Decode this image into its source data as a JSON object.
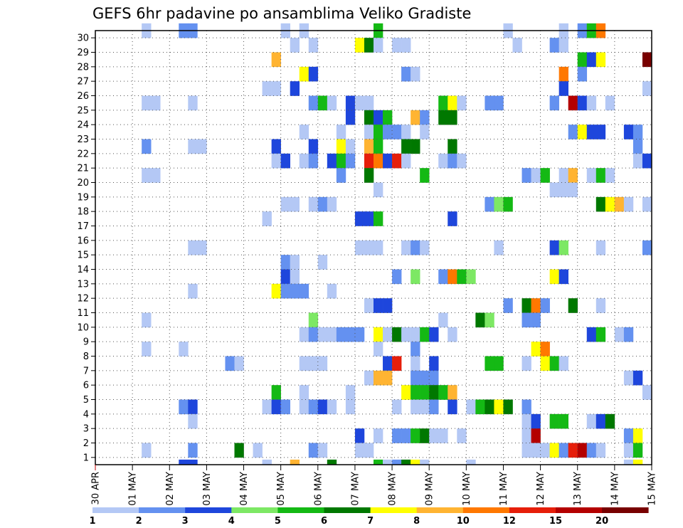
{
  "chart_data": {
    "type": "heatmap",
    "title": "GEFS 6hr padavine po ansamblima Veliko Gradiste",
    "xlabel": "",
    "ylabel": "",
    "x_tick_labels": [
      "30 APR",
      "01 MAY",
      "02 MAY",
      "03 MAY",
      "04 MAY",
      "05 MAY",
      "06 MAY",
      "07 MAY",
      "08 MAY",
      "09 MAY",
      "10 MAY",
      "11 MAY",
      "12 MAY",
      "13 MAY",
      "14 MAY",
      "15 MAY"
    ],
    "y_tick_labels": [
      "1",
      "2",
      "3",
      "4",
      "5",
      "6",
      "7",
      "8",
      "9",
      "10",
      "11",
      "12",
      "13",
      "14",
      "15",
      "16",
      "17",
      "18",
      "19",
      "20",
      "21",
      "22",
      "23",
      "24",
      "25",
      "26",
      "27",
      "28",
      "29",
      "30"
    ],
    "x_steps_per_day": 4,
    "x_range_steps": [
      0,
      60
    ],
    "y_range": [
      0,
      30
    ],
    "grid": true,
    "legend": {
      "placement": "bottom",
      "colors": [
        "#b4c8f5",
        "#6491f0",
        "#1e46dc",
        "#7de864",
        "#14b914",
        "#007800",
        "#ffff00",
        "#ffb432",
        "#ff7800",
        "#e61e0a",
        "#b40000",
        "#780000"
      ],
      "labels": [
        "1",
        "2",
        "3",
        "4",
        "5",
        "6",
        "7",
        "8",
        "10",
        "12",
        "15",
        "20"
      ]
    },
    "cells_format": "[step, member, color_class]",
    "cells": [
      [
        5,
        30,
        0
      ],
      [
        9,
        30,
        1
      ],
      [
        10,
        30,
        1
      ],
      [
        20,
        30,
        0
      ],
      [
        22,
        30,
        0
      ],
      [
        30,
        30,
        4
      ],
      [
        44,
        30,
        0
      ],
      [
        50,
        30,
        0
      ],
      [
        52,
        30,
        1
      ],
      [
        53,
        30,
        4
      ],
      [
        54,
        30,
        8
      ],
      [
        21,
        29,
        0
      ],
      [
        23,
        29,
        0
      ],
      [
        28,
        29,
        6
      ],
      [
        29,
        29,
        5
      ],
      [
        30,
        29,
        0
      ],
      [
        32,
        29,
        0
      ],
      [
        33,
        29,
        0
      ],
      [
        45,
        29,
        0
      ],
      [
        49,
        29,
        1
      ],
      [
        50,
        29,
        0
      ],
      [
        19,
        28,
        7
      ],
      [
        52,
        28,
        4
      ],
      [
        53,
        28,
        2
      ],
      [
        54,
        28,
        6
      ],
      [
        59,
        28,
        11
      ],
      [
        22,
        27,
        6
      ],
      [
        23,
        27,
        2
      ],
      [
        33,
        27,
        1
      ],
      [
        34,
        27,
        0
      ],
      [
        50,
        27,
        8
      ],
      [
        52,
        27,
        1
      ],
      [
        18,
        26,
        0
      ],
      [
        19,
        26,
        0
      ],
      [
        21,
        26,
        2
      ],
      [
        50,
        26,
        2
      ],
      [
        59,
        26,
        0
      ],
      [
        5,
        25,
        0
      ],
      [
        6,
        25,
        0
      ],
      [
        10,
        25,
        0
      ],
      [
        23,
        25,
        1
      ],
      [
        24,
        25,
        4
      ],
      [
        25,
        25,
        0
      ],
      [
        27,
        25,
        2
      ],
      [
        28,
        25,
        0
      ],
      [
        29,
        25,
        0
      ],
      [
        37,
        25,
        4
      ],
      [
        38,
        25,
        6
      ],
      [
        39,
        25,
        0
      ],
      [
        42,
        25,
        1
      ],
      [
        43,
        25,
        1
      ],
      [
        49,
        25,
        1
      ],
      [
        51,
        25,
        10
      ],
      [
        52,
        25,
        2
      ],
      [
        53,
        25,
        0
      ],
      [
        55,
        25,
        0
      ],
      [
        27,
        24,
        2
      ],
      [
        29,
        24,
        5
      ],
      [
        30,
        24,
        2
      ],
      [
        31,
        24,
        4
      ],
      [
        34,
        24,
        7
      ],
      [
        35,
        24,
        1
      ],
      [
        37,
        24,
        5
      ],
      [
        38,
        24,
        5
      ],
      [
        22,
        23,
        0
      ],
      [
        26,
        23,
        0
      ],
      [
        29,
        23,
        0
      ],
      [
        30,
        23,
        4
      ],
      [
        31,
        23,
        1
      ],
      [
        32,
        23,
        1
      ],
      [
        33,
        23,
        0
      ],
      [
        35,
        23,
        0
      ],
      [
        51,
        23,
        1
      ],
      [
        52,
        23,
        6
      ],
      [
        53,
        23,
        2
      ],
      [
        54,
        23,
        2
      ],
      [
        57,
        23,
        2
      ],
      [
        58,
        23,
        1
      ],
      [
        5,
        22,
        1
      ],
      [
        10,
        22,
        0
      ],
      [
        11,
        22,
        0
      ],
      [
        19,
        22,
        2
      ],
      [
        23,
        22,
        2
      ],
      [
        26,
        22,
        6
      ],
      [
        27,
        22,
        0
      ],
      [
        29,
        22,
        7
      ],
      [
        30,
        22,
        4
      ],
      [
        33,
        22,
        5
      ],
      [
        34,
        22,
        5
      ],
      [
        38,
        22,
        5
      ],
      [
        58,
        22,
        1
      ],
      [
        19,
        21,
        0
      ],
      [
        20,
        21,
        2
      ],
      [
        22,
        21,
        0
      ],
      [
        23,
        21,
        1
      ],
      [
        25,
        21,
        2
      ],
      [
        26,
        21,
        4
      ],
      [
        27,
        21,
        1
      ],
      [
        29,
        21,
        9
      ],
      [
        30,
        21,
        8
      ],
      [
        31,
        21,
        2
      ],
      [
        32,
        21,
        9
      ],
      [
        33,
        21,
        0
      ],
      [
        37,
        21,
        0
      ],
      [
        38,
        21,
        1
      ],
      [
        39,
        21,
        0
      ],
      [
        58,
        21,
        0
      ],
      [
        59,
        21,
        2
      ],
      [
        5,
        20,
        0
      ],
      [
        6,
        20,
        0
      ],
      [
        26,
        20,
        1
      ],
      [
        29,
        20,
        5
      ],
      [
        35,
        20,
        4
      ],
      [
        46,
        20,
        1
      ],
      [
        47,
        20,
        0
      ],
      [
        48,
        20,
        4
      ],
      [
        50,
        20,
        0
      ],
      [
        51,
        20,
        7
      ],
      [
        53,
        20,
        0
      ],
      [
        54,
        20,
        4
      ],
      [
        55,
        20,
        0
      ],
      [
        30,
        19,
        0
      ],
      [
        49,
        19,
        0
      ],
      [
        50,
        19,
        0
      ],
      [
        51,
        19,
        0
      ],
      [
        20,
        18,
        0
      ],
      [
        21,
        18,
        0
      ],
      [
        23,
        18,
        0
      ],
      [
        24,
        18,
        1
      ],
      [
        25,
        18,
        0
      ],
      [
        42,
        18,
        1
      ],
      [
        43,
        18,
        3
      ],
      [
        44,
        18,
        4
      ],
      [
        54,
        18,
        5
      ],
      [
        55,
        18,
        6
      ],
      [
        56,
        18,
        7
      ],
      [
        57,
        18,
        0
      ],
      [
        59,
        18,
        0
      ],
      [
        18,
        17,
        0
      ],
      [
        28,
        17,
        2
      ],
      [
        29,
        17,
        2
      ],
      [
        30,
        17,
        4
      ],
      [
        38,
        17,
        2
      ],
      [
        10,
        15,
        0
      ],
      [
        11,
        15,
        0
      ],
      [
        28,
        15,
        0
      ],
      [
        29,
        15,
        0
      ],
      [
        30,
        15,
        0
      ],
      [
        33,
        15,
        0
      ],
      [
        34,
        15,
        1
      ],
      [
        35,
        15,
        0
      ],
      [
        43,
        15,
        0
      ],
      [
        49,
        15,
        2
      ],
      [
        50,
        15,
        3
      ],
      [
        54,
        15,
        0
      ],
      [
        59,
        15,
        1
      ],
      [
        20,
        14,
        1
      ],
      [
        21,
        14,
        0
      ],
      [
        24,
        14,
        0
      ],
      [
        20,
        13,
        2
      ],
      [
        21,
        13,
        0
      ],
      [
        32,
        13,
        1
      ],
      [
        34,
        13,
        3
      ],
      [
        37,
        13,
        1
      ],
      [
        38,
        13,
        8
      ],
      [
        39,
        13,
        4
      ],
      [
        40,
        13,
        3
      ],
      [
        49,
        13,
        6
      ],
      [
        50,
        13,
        2
      ],
      [
        10,
        12,
        0
      ],
      [
        19,
        12,
        6
      ],
      [
        20,
        12,
        1
      ],
      [
        21,
        12,
        1
      ],
      [
        22,
        12,
        1
      ],
      [
        25,
        12,
        0
      ],
      [
        29,
        11,
        0
      ],
      [
        30,
        11,
        2
      ],
      [
        31,
        11,
        2
      ],
      [
        44,
        11,
        1
      ],
      [
        46,
        11,
        5
      ],
      [
        47,
        11,
        8
      ],
      [
        48,
        11,
        1
      ],
      [
        51,
        11,
        5
      ],
      [
        54,
        11,
        0
      ],
      [
        5,
        10,
        0
      ],
      [
        23,
        10,
        3
      ],
      [
        37,
        10,
        0
      ],
      [
        41,
        10,
        5
      ],
      [
        42,
        10,
        3
      ],
      [
        46,
        10,
        1
      ],
      [
        47,
        10,
        1
      ],
      [
        22,
        9,
        0
      ],
      [
        23,
        9,
        1
      ],
      [
        24,
        9,
        0
      ],
      [
        25,
        9,
        0
      ],
      [
        26,
        9,
        1
      ],
      [
        27,
        9,
        1
      ],
      [
        28,
        9,
        1
      ],
      [
        30,
        9,
        6
      ],
      [
        31,
        9,
        0
      ],
      [
        32,
        9,
        5
      ],
      [
        33,
        9,
        0
      ],
      [
        34,
        9,
        0
      ],
      [
        35,
        9,
        4
      ],
      [
        36,
        9,
        2
      ],
      [
        38,
        9,
        0
      ],
      [
        53,
        9,
        2
      ],
      [
        54,
        9,
        4
      ],
      [
        56,
        9,
        0
      ],
      [
        57,
        9,
        1
      ],
      [
        5,
        8,
        0
      ],
      [
        9,
        8,
        0
      ],
      [
        30,
        8,
        0
      ],
      [
        34,
        8,
        1
      ],
      [
        47,
        8,
        6
      ],
      [
        48,
        8,
        8
      ],
      [
        14,
        7,
        1
      ],
      [
        15,
        7,
        0
      ],
      [
        22,
        7,
        0
      ],
      [
        23,
        7,
        0
      ],
      [
        24,
        7,
        0
      ],
      [
        31,
        7,
        2
      ],
      [
        32,
        7,
        9
      ],
      [
        34,
        7,
        0
      ],
      [
        36,
        7,
        2
      ],
      [
        42,
        7,
        4
      ],
      [
        43,
        7,
        4
      ],
      [
        46,
        7,
        0
      ],
      [
        48,
        7,
        6
      ],
      [
        49,
        7,
        4
      ],
      [
        50,
        7,
        0
      ],
      [
        29,
        6,
        0
      ],
      [
        30,
        6,
        7
      ],
      [
        31,
        6,
        7
      ],
      [
        34,
        6,
        1
      ],
      [
        35,
        6,
        1
      ],
      [
        36,
        6,
        1
      ],
      [
        57,
        6,
        0
      ],
      [
        58,
        6,
        2
      ],
      [
        19,
        5,
        4
      ],
      [
        22,
        5,
        0
      ],
      [
        27,
        5,
        0
      ],
      [
        33,
        5,
        6
      ],
      [
        34,
        5,
        4
      ],
      [
        35,
        5,
        4
      ],
      [
        36,
        5,
        5
      ],
      [
        37,
        5,
        4
      ],
      [
        38,
        5,
        7
      ],
      [
        59,
        5,
        0
      ],
      [
        9,
        4,
        1
      ],
      [
        10,
        4,
        2
      ],
      [
        18,
        4,
        0
      ],
      [
        19,
        4,
        2
      ],
      [
        20,
        4,
        1
      ],
      [
        22,
        4,
        0
      ],
      [
        23,
        4,
        1
      ],
      [
        24,
        4,
        2
      ],
      [
        25,
        4,
        0
      ],
      [
        27,
        4,
        0
      ],
      [
        32,
        4,
        0
      ],
      [
        34,
        4,
        0
      ],
      [
        35,
        4,
        0
      ],
      [
        36,
        4,
        1
      ],
      [
        38,
        4,
        2
      ],
      [
        40,
        4,
        0
      ],
      [
        41,
        4,
        4
      ],
      [
        42,
        4,
        5
      ],
      [
        43,
        4,
        6
      ],
      [
        44,
        4,
        5
      ],
      [
        46,
        4,
        1
      ],
      [
        10,
        3,
        0
      ],
      [
        46,
        3,
        0
      ],
      [
        47,
        3,
        2
      ],
      [
        49,
        3,
        4
      ],
      [
        50,
        3,
        4
      ],
      [
        53,
        3,
        0
      ],
      [
        54,
        3,
        2
      ],
      [
        55,
        3,
        5
      ],
      [
        28,
        2,
        2
      ],
      [
        30,
        2,
        0
      ],
      [
        32,
        2,
        1
      ],
      [
        33,
        2,
        1
      ],
      [
        34,
        2,
        4
      ],
      [
        35,
        2,
        5
      ],
      [
        36,
        2,
        0
      ],
      [
        37,
        2,
        0
      ],
      [
        39,
        2,
        0
      ],
      [
        46,
        2,
        0
      ],
      [
        47,
        2,
        10
      ],
      [
        57,
        2,
        1
      ],
      [
        58,
        2,
        6
      ],
      [
        5,
        1,
        0
      ],
      [
        10,
        1,
        1
      ],
      [
        15,
        1,
        5
      ],
      [
        17,
        1,
        0
      ],
      [
        23,
        1,
        1
      ],
      [
        24,
        1,
        0
      ],
      [
        28,
        1,
        0
      ],
      [
        29,
        1,
        0
      ],
      [
        46,
        1,
        0
      ],
      [
        47,
        1,
        0
      ],
      [
        48,
        1,
        0
      ],
      [
        49,
        1,
        6
      ],
      [
        50,
        1,
        1
      ],
      [
        51,
        1,
        9
      ],
      [
        52,
        1,
        10
      ],
      [
        53,
        1,
        1
      ],
      [
        54,
        1,
        0
      ],
      [
        57,
        1,
        0
      ],
      [
        58,
        1,
        4
      ],
      [
        9,
        0,
        2
      ],
      [
        10,
        0,
        2
      ],
      [
        18,
        0,
        0
      ],
      [
        21,
        0,
        7
      ],
      [
        25,
        0,
        5
      ],
      [
        30,
        0,
        4
      ],
      [
        31,
        0,
        0
      ],
      [
        32,
        0,
        1
      ],
      [
        33,
        0,
        5
      ],
      [
        34,
        0,
        6
      ],
      [
        35,
        0,
        0
      ],
      [
        40,
        0,
        0
      ],
      [
        57,
        0,
        0
      ],
      [
        58,
        0,
        6
      ]
    ]
  }
}
